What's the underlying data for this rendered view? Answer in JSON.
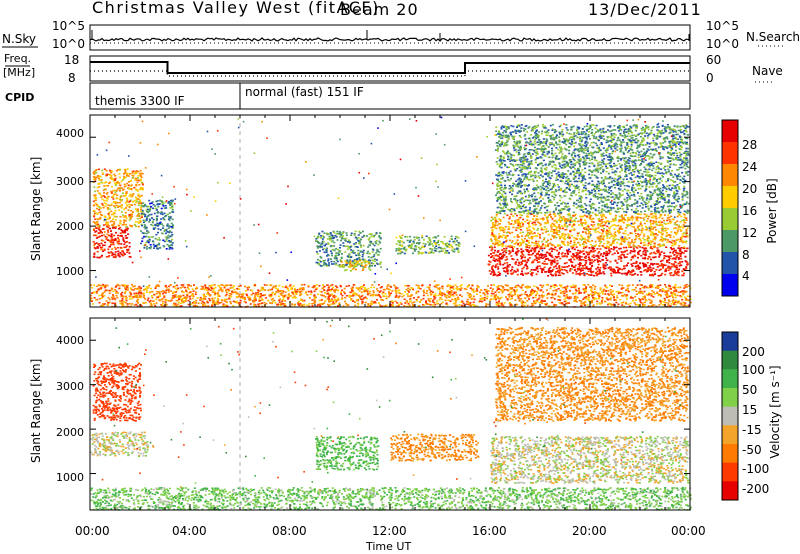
{
  "header": {
    "station": "Christmas Valley West (fitACF)",
    "beam": "Beam 20",
    "date": "13/Dec/2011"
  },
  "strips": {
    "nsky": {
      "label": "N.Sky",
      "left_ticks": [
        "10^5",
        "10^0"
      ],
      "right_label": "N.Search",
      "right_ticks": [
        "10^5",
        "10^0"
      ]
    },
    "freq": {
      "label_top": "Freq.",
      "label_unit": "[MHz]",
      "left_ticks": [
        "18",
        "8"
      ],
      "right_label": "Nave",
      "right_ticks": [
        "60",
        "0"
      ]
    },
    "cpid": {
      "label": "CPID",
      "modes": [
        "themis 3300 IF",
        "normal (fast) 151 IF"
      ]
    }
  },
  "colorbars": {
    "power": {
      "label": "Power [dB]",
      "ticks": [
        "28",
        "24",
        "20",
        "16",
        "12",
        "8",
        "4"
      ],
      "colors": [
        "#e60000",
        "#ff3300",
        "#ff8800",
        "#ffcc00",
        "#99cc33",
        "#4d9966",
        "#2255aa",
        "#0000ee"
      ]
    },
    "velocity": {
      "label": "Velocity [m s⁻¹]",
      "ticks": [
        "200",
        "100",
        "50",
        "15",
        "-15",
        "-50",
        "-100",
        "-200"
      ],
      "colors": [
        "#1a3d99",
        "#2f8a3e",
        "#3fb34a",
        "#80d04a",
        "#bdbdb6",
        "#f2a52a",
        "#ff7a00",
        "#ff3a00",
        "#e60000"
      ]
    }
  },
  "panels": {
    "ylabel": "Slant Range [km]",
    "yticks": [
      "4000",
      "3000",
      "2000",
      "1000"
    ],
    "xticks": [
      "00:00",
      "04:00",
      "08:00",
      "12:00",
      "16:00",
      "20:00",
      "00:00"
    ],
    "xlabel": "Time UT"
  },
  "chart_data": [
    {
      "type": "heatmap",
      "title": "Power",
      "xlabel": "",
      "ylabel": "Slant Range [km]",
      "xlim": [
        "00:00",
        "24:00"
      ],
      "ylim": [
        180,
        4500
      ],
      "zlim": [
        0,
        30
      ],
      "zlabel": "Power [dB]",
      "regions": [
        {
          "t": [
            0.1,
            1.6
          ],
          "r": [
            1300,
            2000
          ],
          "z": 26
        },
        {
          "t": [
            0.1,
            2.1
          ],
          "r": [
            2000,
            3300
          ],
          "z": 18
        },
        {
          "t": [
            2.0,
            3.3
          ],
          "r": [
            1500,
            2600
          ],
          "z": 6
        },
        {
          "t": [
            9.0,
            11.6
          ],
          "r": [
            1100,
            1900
          ],
          "z": 8
        },
        {
          "t": [
            10.0,
            11.2
          ],
          "r": [
            1000,
            1250
          ],
          "z": 16
        },
        {
          "t": [
            12.2,
            14.8
          ],
          "r": [
            1400,
            1800
          ],
          "z": 10
        },
        {
          "t": [
            15.9,
            23.9
          ],
          "r": [
            900,
            1550
          ],
          "z": 27
        },
        {
          "t": [
            16.0,
            23.9
          ],
          "r": [
            1550,
            2300
          ],
          "z": 18
        },
        {
          "t": [
            16.2,
            23.9
          ],
          "r": [
            2300,
            4300
          ],
          "z": 8
        },
        {
          "t": [
            0.0,
            24.0
          ],
          "r": [
            200,
            700
          ],
          "z": 20
        }
      ]
    },
    {
      "type": "heatmap",
      "title": "Velocity",
      "xlabel": "Time UT",
      "ylabel": "Slant Range [km]",
      "xlim": [
        "00:00",
        "24:00"
      ],
      "ylim": [
        180,
        4500
      ],
      "zlim": [
        -200,
        200
      ],
      "zlabel": "Velocity [m s⁻¹]",
      "regions": [
        {
          "t": [
            0.0,
            2.3
          ],
          "r": [
            1400,
            1950
          ],
          "z": 0
        },
        {
          "t": [
            0.1,
            2.0
          ],
          "r": [
            2200,
            3500
          ],
          "z": -150
        },
        {
          "t": [
            9.0,
            11.5
          ],
          "r": [
            1100,
            1850
          ],
          "z": 60
        },
        {
          "t": [
            12.0,
            15.5
          ],
          "r": [
            1300,
            1900
          ],
          "z": -60
        },
        {
          "t": [
            16.0,
            23.9
          ],
          "r": [
            800,
            1850
          ],
          "z": 0
        },
        {
          "t": [
            16.2,
            23.9
          ],
          "r": [
            2200,
            4300
          ],
          "z": -50
        },
        {
          "t": [
            0.0,
            24.0
          ],
          "r": [
            200,
            700
          ],
          "z": 40
        }
      ]
    }
  ]
}
